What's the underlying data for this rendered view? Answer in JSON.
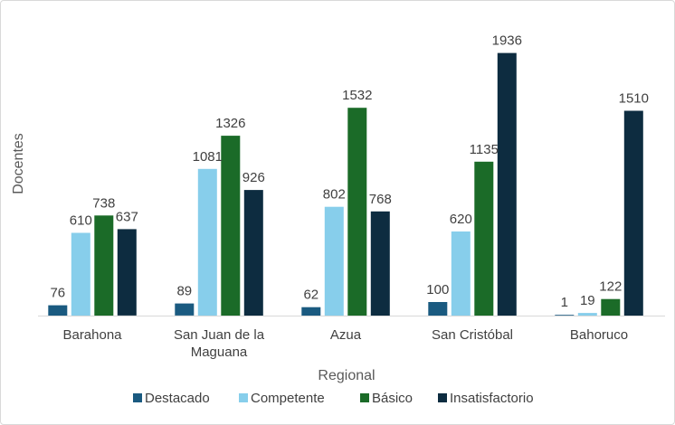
{
  "chart_data": {
    "type": "bar",
    "xlabel": "Regional",
    "ylabel": "Docentes",
    "categories": [
      [
        "Barahona"
      ],
      [
        "San Juan de la",
        "Maguana"
      ],
      [
        "Azua"
      ],
      [
        "San Cristóbal"
      ],
      [
        "Bahoruco"
      ]
    ],
    "series": [
      {
        "name": "Destacado",
        "color": "#1a5a80",
        "values": [
          76,
          89,
          62,
          100,
          1
        ]
      },
      {
        "name": "Competente",
        "color": "#87ceeb",
        "values": [
          610,
          1081,
          802,
          620,
          19
        ]
      },
      {
        "name": "Básico",
        "color": "#1b6b28",
        "values": [
          738,
          1326,
          1532,
          1135,
          122
        ]
      },
      {
        "name": "Insatisfactorio",
        "color": "#0d2c40",
        "values": [
          637,
          926,
          768,
          1936,
          1510
        ]
      }
    ],
    "ylim": [
      0,
      2000
    ],
    "grid": false,
    "legend_position": "bottom"
  }
}
